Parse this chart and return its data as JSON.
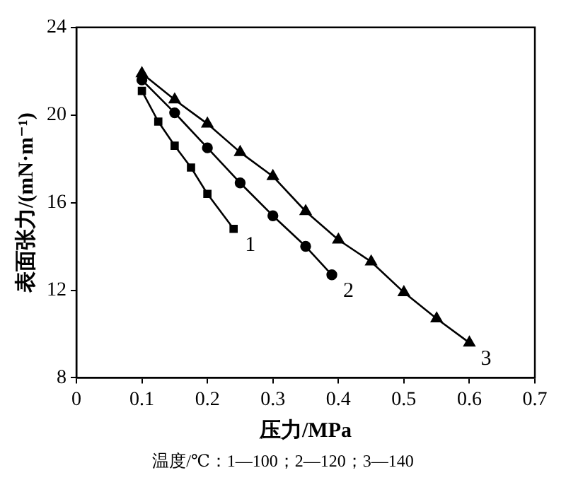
{
  "chart_data": {
    "type": "line",
    "xlabel": "压力/MPa",
    "ylabel": "表面张力/(mN·m⁻¹)",
    "xlim": [
      0,
      0.7
    ],
    "xticks": [
      0,
      0.1,
      0.2,
      0.3,
      0.4,
      0.5,
      0.6,
      0.7
    ],
    "ylim": [
      8,
      24
    ],
    "yticks": [
      8,
      12,
      16,
      20,
      24
    ],
    "grid": false,
    "legend": false,
    "line_style": "solid",
    "annotations": [
      "温度/℃：1—100；2—120；3—140"
    ],
    "series": [
      {
        "name": "1",
        "color": "#000000",
        "marker": "square",
        "x": [
          0.1,
          0.125,
          0.15,
          0.175,
          0.2,
          0.24
        ],
        "values": [
          21.1,
          19.7,
          18.6,
          17.6,
          16.4,
          14.8
        ]
      },
      {
        "name": "2",
        "color": "#000000",
        "marker": "circle",
        "x": [
          0.1,
          0.15,
          0.2,
          0.25,
          0.3,
          0.35,
          0.39
        ],
        "values": [
          21.6,
          20.1,
          18.5,
          16.9,
          15.4,
          14.0,
          12.7
        ]
      },
      {
        "name": "3",
        "color": "#000000",
        "marker": "triangle",
        "x": [
          0.1,
          0.15,
          0.2,
          0.25,
          0.3,
          0.35,
          0.4,
          0.45,
          0.5,
          0.55,
          0.6
        ],
        "values": [
          21.9,
          20.7,
          19.6,
          18.3,
          17.2,
          15.6,
          14.3,
          13.3,
          11.9,
          10.7,
          9.6
        ]
      }
    ]
  }
}
